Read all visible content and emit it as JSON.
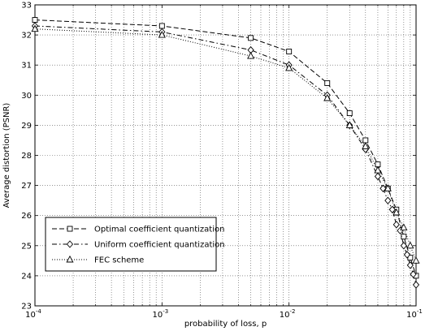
{
  "chart_data": {
    "type": "line",
    "title": "",
    "xlabel": "probability of loss, p",
    "ylabel": "Average distortion (PSNR)",
    "x_scale": "log",
    "xlim": [
      0.0001,
      0.1
    ],
    "ylim": [
      23,
      33
    ],
    "x_ticks": [
      {
        "base": "10",
        "exp": "-4",
        "value": 0.0001
      },
      {
        "base": "10",
        "exp": "-3",
        "value": 0.001
      },
      {
        "base": "10",
        "exp": "-2",
        "value": 0.01
      },
      {
        "base": "10",
        "exp": "-1",
        "value": 0.1
      }
    ],
    "y_ticks": [
      "23",
      "24",
      "25",
      "26",
      "27",
      "28",
      "29",
      "30",
      "31",
      "32",
      "33"
    ],
    "grid": true,
    "legend_position": "lower-left",
    "series": [
      {
        "name": "Optimal coefficient quantization",
        "marker": "square",
        "line_style": "dashed",
        "x": [
          0.0001,
          0.001,
          0.005,
          0.01,
          0.02,
          0.03,
          0.04,
          0.05,
          0.06,
          0.07,
          0.08,
          0.09,
          0.1
        ],
        "y": [
          32.5,
          32.3,
          31.9,
          31.45,
          30.4,
          29.4,
          28.5,
          27.7,
          26.9,
          26.2,
          25.3,
          24.6,
          24.0
        ]
      },
      {
        "name": "Uniform coefficient quantization",
        "marker": "diamond",
        "line_style": "dash-dot",
        "x": [
          0.0001,
          0.001,
          0.005,
          0.01,
          0.02,
          0.03,
          0.04,
          0.05,
          0.055,
          0.06,
          0.065,
          0.07,
          0.075,
          0.08,
          0.085,
          0.09,
          0.095,
          0.1
        ],
        "y": [
          32.3,
          32.1,
          31.5,
          31.0,
          30.0,
          29.0,
          28.2,
          27.3,
          26.9,
          26.5,
          26.2,
          25.7,
          25.5,
          25.0,
          24.7,
          24.35,
          24.05,
          23.7
        ]
      },
      {
        "name": "FEC scheme",
        "marker": "triangle",
        "line_style": "dotted",
        "x": [
          0.0001,
          0.001,
          0.005,
          0.01,
          0.02,
          0.03,
          0.04,
          0.05,
          0.06,
          0.07,
          0.08,
          0.09,
          0.1
        ],
        "y": [
          32.2,
          32.0,
          31.3,
          30.9,
          29.9,
          29.0,
          28.3,
          27.5,
          26.9,
          26.1,
          25.6,
          25.0,
          24.5
        ]
      }
    ]
  }
}
